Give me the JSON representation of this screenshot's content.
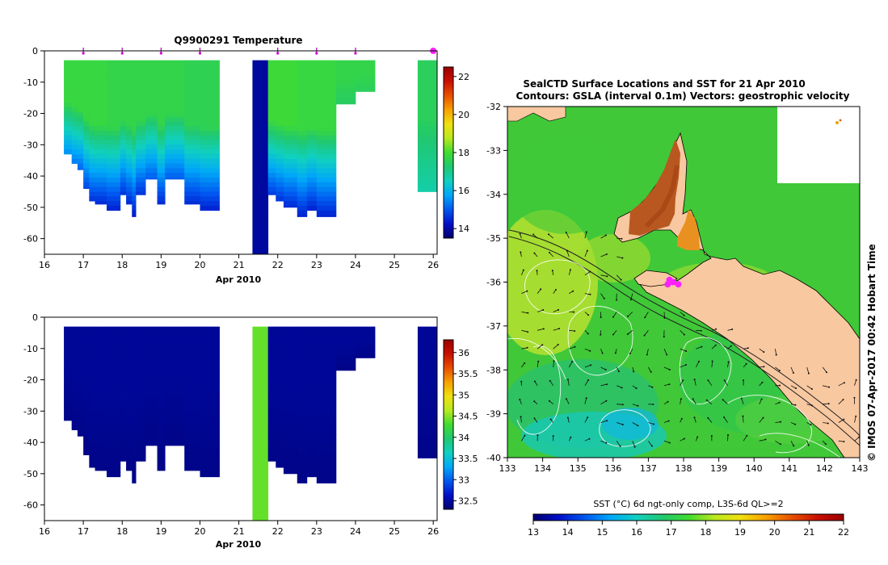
{
  "chart_data": [
    {
      "id": "temperature_section",
      "type": "heatmap",
      "title": "Q9900291  Temperature",
      "xlabel": "Apr 2010",
      "ylabel": "",
      "xlim": [
        16,
        26.1
      ],
      "ylim": [
        -65,
        0
      ],
      "xticks": [
        "16",
        "17",
        "18",
        "19",
        "20",
        "21",
        "22",
        "23",
        "24",
        "25",
        "26"
      ],
      "yticks": [
        "0",
        "-10",
        "-20",
        "-30",
        "-40",
        "-50",
        "-60"
      ],
      "yticks_values": [
        0,
        -10,
        -20,
        -30,
        -40,
        -50,
        -60
      ],
      "profile_markers_days": [
        17,
        18,
        19,
        20,
        22,
        23,
        24,
        26
      ],
      "colorbar": {
        "min": 13.5,
        "max": 22.5,
        "ticks": [
          "14",
          "16",
          "18",
          "20",
          "22"
        ],
        "ticks_values": [
          14,
          16,
          18,
          20,
          22
        ],
        "colors": [
          "#00006e",
          "#0010c8",
          "#0058f0",
          "#00a8f8",
          "#10d0c0",
          "#20c870",
          "#40dc30",
          "#b8e820",
          "#f0e010",
          "#f8a000",
          "#e85000",
          "#c81000",
          "#9c0000"
        ]
      },
      "series": [
        {
          "x0": 16.5,
          "x1": 16.7,
          "top_depth": -3,
          "bottom_depth": -33,
          "surface_value": 17.8,
          "bottom_value": 15.5
        },
        {
          "x0": 16.7,
          "x1": 16.85,
          "top_depth": -3,
          "bottom_depth": -36,
          "surface_value": 17.8,
          "bottom_value": 15.3
        },
        {
          "x0": 16.85,
          "x1": 17.0,
          "top_depth": -3,
          "bottom_depth": -38,
          "surface_value": 17.8,
          "bottom_value": 15.1
        },
        {
          "x0": 17.0,
          "x1": 17.15,
          "top_depth": -3,
          "bottom_depth": -44,
          "surface_value": 17.8,
          "bottom_value": 14.8
        },
        {
          "x0": 17.15,
          "x1": 17.3,
          "top_depth": -3,
          "bottom_depth": -48,
          "surface_value": 17.8,
          "bottom_value": 14.6
        },
        {
          "x0": 17.3,
          "x1": 17.6,
          "top_depth": -3,
          "bottom_depth": -49,
          "surface_value": 17.8,
          "bottom_value": 14.5
        },
        {
          "x0": 17.6,
          "x1": 17.95,
          "top_depth": -3,
          "bottom_depth": -51,
          "surface_value": 17.7,
          "bottom_value": 14.4
        },
        {
          "x0": 17.95,
          "x1": 18.1,
          "top_depth": -3,
          "bottom_depth": -46,
          "surface_value": 17.7,
          "bottom_value": 14.6
        },
        {
          "x0": 18.1,
          "x1": 18.25,
          "top_depth": -3,
          "bottom_depth": -49,
          "surface_value": 17.7,
          "bottom_value": 14.5
        },
        {
          "x0": 18.25,
          "x1": 18.35,
          "top_depth": -3,
          "bottom_depth": -53,
          "surface_value": 17.7,
          "bottom_value": 14.3
        },
        {
          "x0": 18.35,
          "x1": 18.6,
          "top_depth": -3,
          "bottom_depth": -46,
          "surface_value": 17.7,
          "bottom_value": 14.6
        },
        {
          "x0": 18.6,
          "x1": 18.9,
          "top_depth": -3,
          "bottom_depth": -41,
          "surface_value": 17.7,
          "bottom_value": 15.0
        },
        {
          "x0": 18.9,
          "x1": 19.1,
          "top_depth": -3,
          "bottom_depth": -49,
          "surface_value": 17.7,
          "bottom_value": 14.5
        },
        {
          "x0": 19.1,
          "x1": 19.6,
          "top_depth": -3,
          "bottom_depth": -41,
          "surface_value": 17.7,
          "bottom_value": 15.0
        },
        {
          "x0": 19.6,
          "x1": 20.0,
          "top_depth": -3,
          "bottom_depth": -49,
          "surface_value": 17.6,
          "bottom_value": 14.5
        },
        {
          "x0": 20.0,
          "x1": 20.5,
          "top_depth": -3,
          "bottom_depth": -51,
          "surface_value": 17.6,
          "bottom_value": 14.4
        },
        {
          "x0": 21.35,
          "x1": 21.75,
          "top_depth": -3,
          "bottom_depth": -65,
          "surface_value": 13.9,
          "bottom_value": 13.9
        },
        {
          "x0": 21.75,
          "x1": 21.95,
          "top_depth": -3,
          "bottom_depth": -46,
          "surface_value": 17.9,
          "bottom_value": 14.7
        },
        {
          "x0": 21.95,
          "x1": 22.15,
          "top_depth": -3,
          "bottom_depth": -48,
          "surface_value": 17.9,
          "bottom_value": 14.6
        },
        {
          "x0": 22.15,
          "x1": 22.5,
          "top_depth": -3,
          "bottom_depth": -50,
          "surface_value": 17.9,
          "bottom_value": 14.5
        },
        {
          "x0": 22.5,
          "x1": 22.75,
          "top_depth": -3,
          "bottom_depth": -53,
          "surface_value": 17.8,
          "bottom_value": 14.4
        },
        {
          "x0": 22.75,
          "x1": 23.0,
          "top_depth": -3,
          "bottom_depth": -51,
          "surface_value": 17.8,
          "bottom_value": 14.4
        },
        {
          "x0": 23.0,
          "x1": 23.5,
          "top_depth": -3,
          "bottom_depth": -53,
          "surface_value": 17.8,
          "bottom_value": 14.4
        },
        {
          "x0": 23.5,
          "x1": 24.0,
          "top_depth": -3,
          "bottom_depth": -17,
          "surface_value": 17.7,
          "bottom_value": 17.4
        },
        {
          "x0": 24.0,
          "x1": 24.5,
          "top_depth": -3,
          "bottom_depth": -13,
          "surface_value": 17.7,
          "bottom_value": 17.5
        },
        {
          "x0": 25.6,
          "x1": 26.1,
          "top_depth": -3,
          "bottom_depth": -45,
          "surface_value": 17.5,
          "bottom_value": 16.7
        }
      ]
    },
    {
      "id": "salinity_section",
      "type": "heatmap",
      "title": "",
      "xlabel": "Apr 2010",
      "ylabel": "",
      "xlim": [
        16,
        26.1
      ],
      "ylim": [
        -65,
        0
      ],
      "xticks": [
        "16",
        "17",
        "18",
        "19",
        "20",
        "21",
        "22",
        "23",
        "24",
        "25",
        "26"
      ],
      "yticks": [
        "0",
        "-10",
        "-20",
        "-30",
        "-40",
        "-50",
        "-60"
      ],
      "yticks_values": [
        0,
        -10,
        -20,
        -30,
        -40,
        -50,
        -60
      ],
      "colorbar": {
        "min": 32.3,
        "max": 36.3,
        "ticks": [
          "32.5",
          "33",
          "33.5",
          "34",
          "34.5",
          "35",
          "35.5",
          "36"
        ],
        "ticks_values": [
          32.5,
          33,
          33.5,
          34,
          34.5,
          35,
          35.5,
          36
        ],
        "colors": [
          "#00006e",
          "#0010c8",
          "#0058f0",
          "#00a8f8",
          "#10d0c0",
          "#20c870",
          "#40dc30",
          "#b8e820",
          "#f0e010",
          "#f8a000",
          "#e85000",
          "#c81000",
          "#9c0000"
        ]
      },
      "series": [
        {
          "x0": 16.5,
          "x1": 16.7,
          "top_depth": -3,
          "bottom_depth": -33,
          "surface_value": 32.45,
          "bottom_value": 32.4
        },
        {
          "x0": 16.7,
          "x1": 16.85,
          "top_depth": -3,
          "bottom_depth": -36,
          "surface_value": 32.45,
          "bottom_value": 32.4
        },
        {
          "x0": 16.85,
          "x1": 17.0,
          "top_depth": -3,
          "bottom_depth": -38,
          "surface_value": 32.45,
          "bottom_value": 32.4
        },
        {
          "x0": 17.0,
          "x1": 17.15,
          "top_depth": -3,
          "bottom_depth": -44,
          "surface_value": 32.45,
          "bottom_value": 32.4
        },
        {
          "x0": 17.15,
          "x1": 17.3,
          "top_depth": -3,
          "bottom_depth": -48,
          "surface_value": 32.45,
          "bottom_value": 32.4
        },
        {
          "x0": 17.3,
          "x1": 17.6,
          "top_depth": -3,
          "bottom_depth": -49,
          "surface_value": 32.45,
          "bottom_value": 32.4
        },
        {
          "x0": 17.6,
          "x1": 17.95,
          "top_depth": -3,
          "bottom_depth": -51,
          "surface_value": 32.45,
          "bottom_value": 32.4
        },
        {
          "x0": 17.95,
          "x1": 18.1,
          "top_depth": -3,
          "bottom_depth": -46,
          "surface_value": 32.45,
          "bottom_value": 32.4
        },
        {
          "x0": 18.1,
          "x1": 18.25,
          "top_depth": -3,
          "bottom_depth": -49,
          "surface_value": 32.45,
          "bottom_value": 32.4
        },
        {
          "x0": 18.25,
          "x1": 18.35,
          "top_depth": -3,
          "bottom_depth": -53,
          "surface_value": 32.45,
          "bottom_value": 32.4
        },
        {
          "x0": 18.35,
          "x1": 18.6,
          "top_depth": -3,
          "bottom_depth": -46,
          "surface_value": 32.45,
          "bottom_value": 32.4
        },
        {
          "x0": 18.6,
          "x1": 18.9,
          "top_depth": -3,
          "bottom_depth": -41,
          "surface_value": 32.45,
          "bottom_value": 32.4
        },
        {
          "x0": 18.9,
          "x1": 19.1,
          "top_depth": -3,
          "bottom_depth": -49,
          "surface_value": 32.45,
          "bottom_value": 32.4
        },
        {
          "x0": 19.1,
          "x1": 19.6,
          "top_depth": -3,
          "bottom_depth": -41,
          "surface_value": 32.45,
          "bottom_value": 32.4
        },
        {
          "x0": 19.6,
          "x1": 20.0,
          "top_depth": -3,
          "bottom_depth": -49,
          "surface_value": 32.45,
          "bottom_value": 32.4
        },
        {
          "x0": 20.0,
          "x1": 20.5,
          "top_depth": -3,
          "bottom_depth": -51,
          "surface_value": 32.45,
          "bottom_value": 32.4
        },
        {
          "x0": 21.35,
          "x1": 21.75,
          "top_depth": -3,
          "bottom_depth": -65,
          "surface_value": 34.4,
          "bottom_value": 34.4
        },
        {
          "x0": 21.75,
          "x1": 21.95,
          "top_depth": -3,
          "bottom_depth": -46,
          "surface_value": 32.45,
          "bottom_value": 32.4
        },
        {
          "x0": 21.95,
          "x1": 22.15,
          "top_depth": -3,
          "bottom_depth": -48,
          "surface_value": 32.45,
          "bottom_value": 32.4
        },
        {
          "x0": 22.15,
          "x1": 22.5,
          "top_depth": -3,
          "bottom_depth": -50,
          "surface_value": 32.45,
          "bottom_value": 32.4
        },
        {
          "x0": 22.5,
          "x1": 22.75,
          "top_depth": -3,
          "bottom_depth": -53,
          "surface_value": 32.45,
          "bottom_value": 32.4
        },
        {
          "x0": 22.75,
          "x1": 23.0,
          "top_depth": -3,
          "bottom_depth": -51,
          "surface_value": 32.45,
          "bottom_value": 32.4
        },
        {
          "x0": 23.0,
          "x1": 23.5,
          "top_depth": -3,
          "bottom_depth": -53,
          "surface_value": 32.45,
          "bottom_value": 32.4
        },
        {
          "x0": 23.5,
          "x1": 24.0,
          "top_depth": -3,
          "bottom_depth": -17,
          "surface_value": 32.45,
          "bottom_value": 32.4
        },
        {
          "x0": 24.0,
          "x1": 24.5,
          "top_depth": -3,
          "bottom_depth": -13,
          "surface_value": 32.45,
          "bottom_value": 32.4
        },
        {
          "x0": 25.6,
          "x1": 26.1,
          "top_depth": -3,
          "bottom_depth": -45,
          "surface_value": 32.45,
          "bottom_value": 32.4
        }
      ]
    },
    {
      "id": "sst_map",
      "type": "heatmap",
      "title": "SealCTD Surface Locations and SST for 21 Apr 2010",
      "subtitle": "Contours: GSLA (interval 0.1m) Vectors: geostrophic velocity",
      "xlabel": "",
      "ylabel": "",
      "xlim": [
        133,
        143
      ],
      "ylim": [
        -40,
        -32
      ],
      "xticks": [
        "133",
        "134",
        "135",
        "136",
        "137",
        "138",
        "139",
        "140",
        "141",
        "142",
        "143"
      ],
      "xticks_values": [
        133,
        134,
        135,
        136,
        137,
        138,
        139,
        140,
        141,
        142,
        143
      ],
      "yticks": [
        "-32",
        "-33",
        "-34",
        "-35",
        "-36",
        "-37",
        "-38",
        "-39",
        "-40"
      ],
      "yticks_values": [
        -32,
        -33,
        -34,
        -35,
        -36,
        -37,
        -38,
        -39,
        -40
      ],
      "land_color": "#f8c8a0",
      "seal_locations": [
        [
          137.55,
          -36.05
        ],
        [
          137.7,
          -36.0
        ],
        [
          137.85,
          -36.05
        ],
        [
          137.6,
          -35.95
        ]
      ],
      "colorbar": {
        "label": "SST (°C) 6d ngt-only comp, L3S-6d QL>=2",
        "min": 13,
        "max": 22,
        "ticks": [
          "13",
          "14",
          "15",
          "16",
          "17",
          "18",
          "19",
          "20",
          "21",
          "22"
        ],
        "ticks_values": [
          13,
          14,
          15,
          16,
          17,
          18,
          19,
          20,
          21,
          22
        ],
        "colors": [
          "#00006e",
          "#0010c8",
          "#0058f0",
          "#00a8f8",
          "#10d0c0",
          "#20c870",
          "#40dc30",
          "#b8e820",
          "#f0e010",
          "#f8a000",
          "#e85000",
          "#c81000",
          "#9c0000"
        ]
      }
    }
  ],
  "credit": "© IMOS 07-Apr-2017 00:42 Hobart Time"
}
